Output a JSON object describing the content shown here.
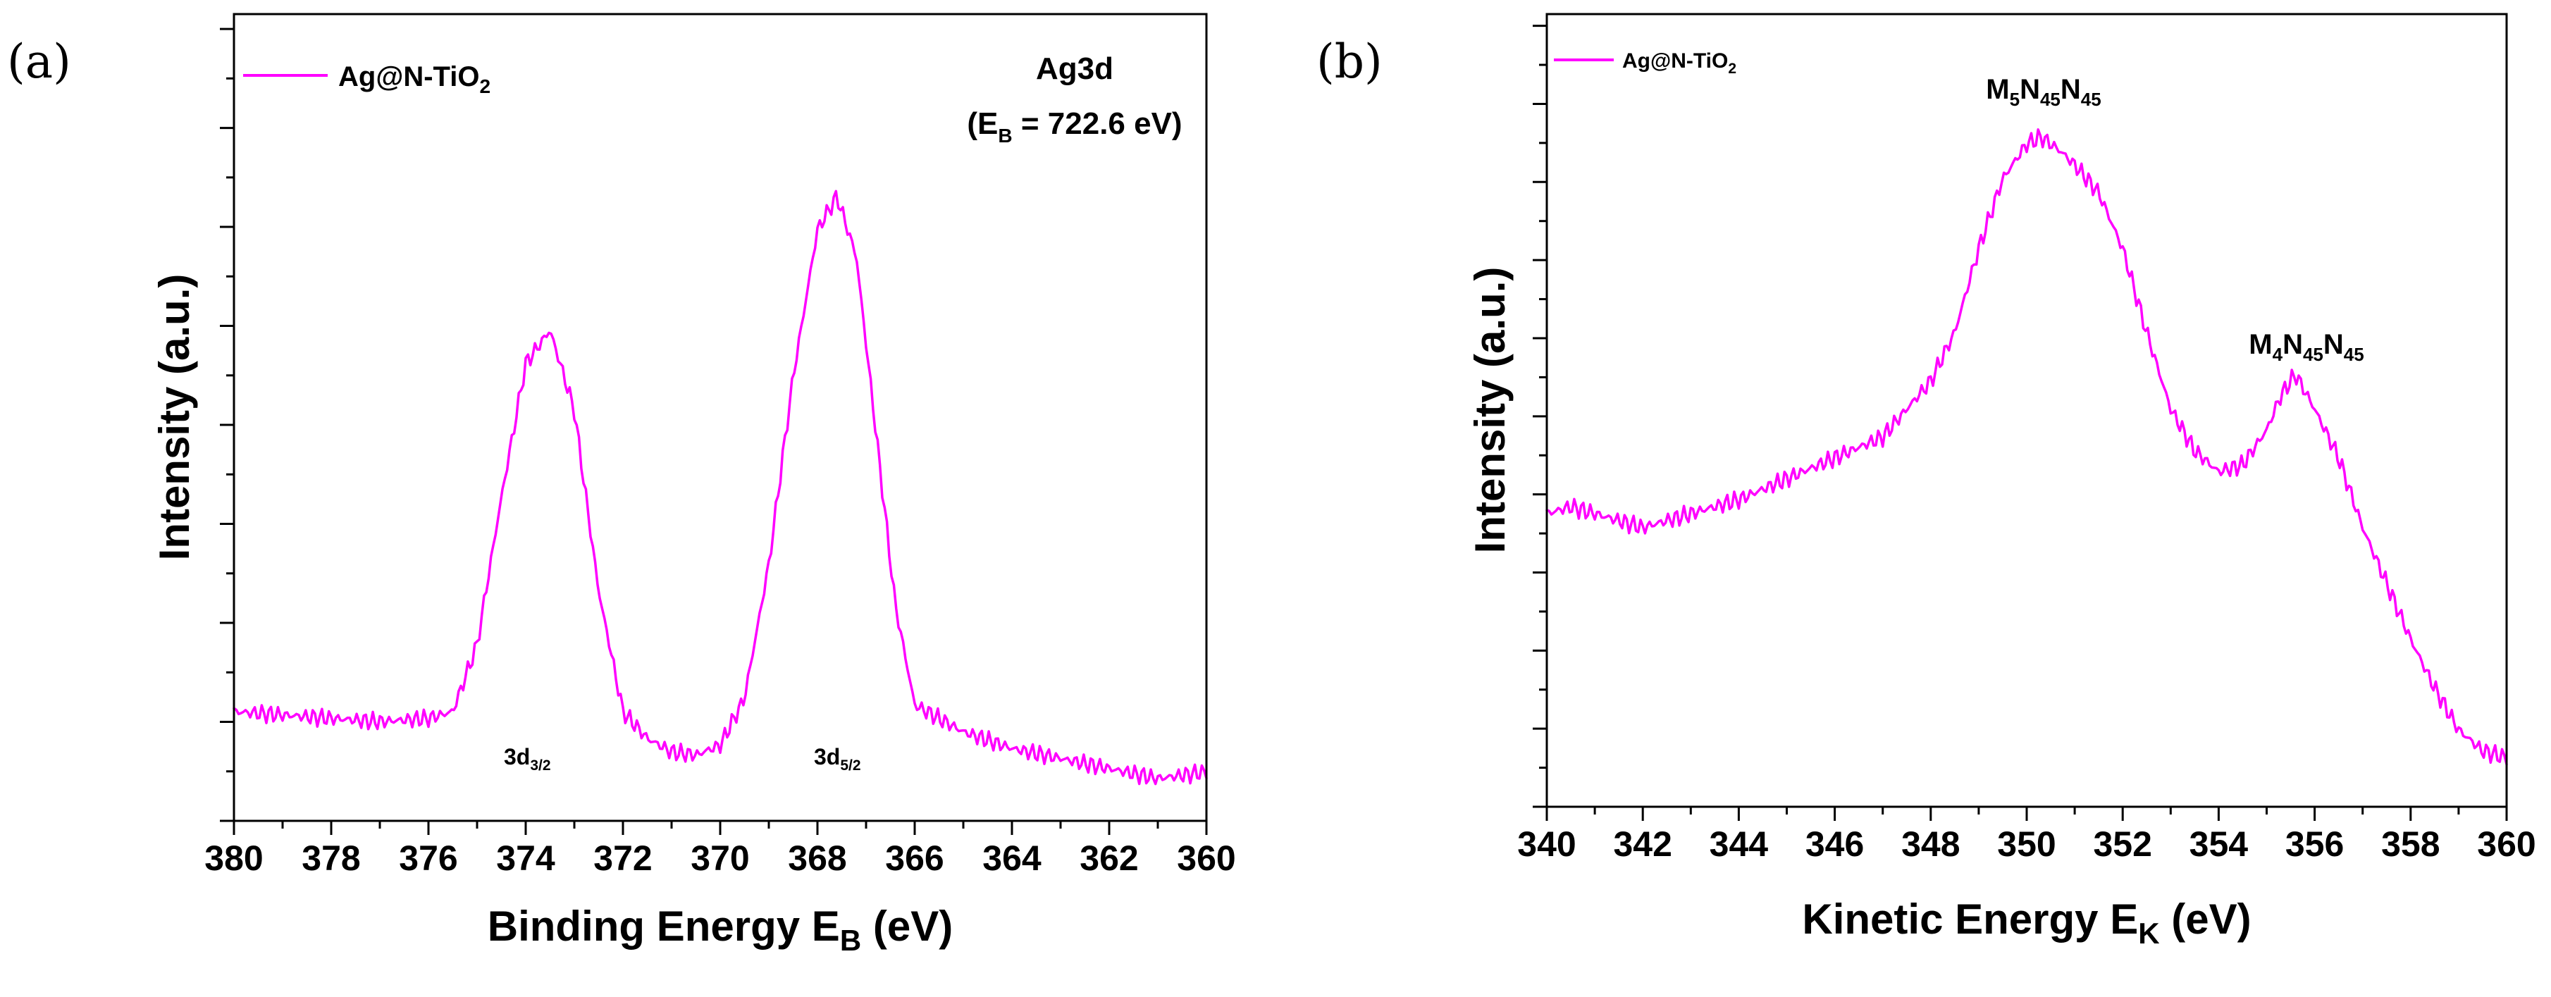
{
  "colors": {
    "series": "#ff00ff"
  },
  "chart_data": [
    {
      "panel_label": "(a)",
      "type": "line",
      "xlabel": "Binding Energy E",
      "xlabel_sub": "B",
      "xlabel_tail": " (eV)",
      "ylabel": "Intensity (a.u.)",
      "xlim": [
        380,
        360
      ],
      "x_reversed": true,
      "xticks": [
        "380",
        "378",
        "376",
        "374",
        "372",
        "370",
        "368",
        "366",
        "364",
        "362",
        "360"
      ],
      "y_tick_count": 8,
      "y_scale": "arbitrary",
      "legend": {
        "position": "top-left",
        "name": "Ag@N-TiO",
        "name_sub": "2"
      },
      "annotation": {
        "line1": "Ag3d",
        "line2_pre": "(E",
        "line2_sub": "B",
        "line2_post": " = 722.6 eV)"
      },
      "peaks": [
        {
          "pre": "3d",
          "sub": "3/2"
        },
        {
          "pre": "3d",
          "sub": "5/2"
        }
      ],
      "series": [
        {
          "name": "Ag@N-TiO2",
          "x": [
            380,
            379,
            378,
            377,
            376,
            375.5,
            375,
            374.5,
            374,
            373.5,
            373,
            372.5,
            372,
            371.5,
            371,
            370.5,
            370,
            369.5,
            369,
            368.5,
            368,
            367.6,
            367.2,
            366.8,
            366.4,
            366,
            365.5,
            365,
            364,
            363,
            362,
            361,
            360
          ],
          "y": [
            0.1,
            0.095,
            0.09,
            0.085,
            0.09,
            0.1,
            0.2,
            0.42,
            0.62,
            0.67,
            0.55,
            0.28,
            0.1,
            0.06,
            0.04,
            0.035,
            0.05,
            0.12,
            0.32,
            0.6,
            0.82,
            0.87,
            0.78,
            0.52,
            0.26,
            0.11,
            0.09,
            0.07,
            0.045,
            0.03,
            0.015,
            0.0,
            0.01
          ]
        }
      ]
    },
    {
      "panel_label": "(b)",
      "type": "line",
      "xlabel": "Kinetic Energy E",
      "xlabel_sub": "K",
      "xlabel_tail": " (eV)",
      "ylabel": "Intensity (a.u.)",
      "xlim": [
        340,
        360
      ],
      "x_reversed": false,
      "xticks": [
        "340",
        "342",
        "344",
        "346",
        "348",
        "350",
        "352",
        "354",
        "356",
        "358",
        "360"
      ],
      "y_tick_count": 10,
      "y_scale": "arbitrary",
      "legend": {
        "position": "top-left",
        "name": "Ag@N-TiO",
        "name_sub": "2"
      },
      "peaks": [
        {
          "pre": "M",
          "sub1": "5",
          "mid": "N",
          "sub2": "45",
          "post": "N",
          "sub3": "45"
        },
        {
          "pre": "M",
          "sub1": "4",
          "mid": "N",
          "sub2": "45",
          "post": "N",
          "sub3": "45"
        }
      ],
      "series": [
        {
          "name": "Ag@N-TiO2",
          "x": [
            340,
            340.5,
            341,
            342,
            343,
            344,
            345,
            346,
            347,
            347.5,
            348,
            348.5,
            349,
            349.5,
            350,
            350.3,
            350.7,
            351,
            351.5,
            352,
            352.5,
            353,
            353.5,
            354,
            354.5,
            355,
            355.3,
            355.6,
            356,
            356.5,
            357,
            357.5,
            358,
            358.5,
            359,
            359.5,
            360
          ],
          "y": [
            0.4,
            0.41,
            0.4,
            0.38,
            0.4,
            0.42,
            0.45,
            0.48,
            0.51,
            0.55,
            0.59,
            0.66,
            0.78,
            0.88,
            0.93,
            0.94,
            0.92,
            0.9,
            0.86,
            0.78,
            0.66,
            0.55,
            0.49,
            0.46,
            0.47,
            0.52,
            0.57,
            0.6,
            0.55,
            0.48,
            0.38,
            0.3,
            0.22,
            0.15,
            0.09,
            0.06,
            0.05
          ]
        }
      ]
    }
  ]
}
